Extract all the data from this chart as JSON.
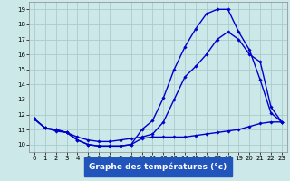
{
  "xlabel": "Graphe des températures (°c)",
  "background_color": "#cce8e8",
  "grid_color": "#aacccc",
  "line_color": "#0000cc",
  "xlim": [
    -0.5,
    23.5
  ],
  "ylim": [
    9.5,
    19.5
  ],
  "yticks": [
    10,
    11,
    12,
    13,
    14,
    15,
    16,
    17,
    18,
    19
  ],
  "xticks": [
    0,
    1,
    2,
    3,
    4,
    5,
    6,
    7,
    8,
    9,
    10,
    11,
    12,
    13,
    14,
    15,
    16,
    17,
    18,
    19,
    20,
    21,
    22,
    23
  ],
  "series": [
    {
      "x": [
        0,
        1,
        2,
        3,
        4,
        5,
        6,
        7,
        8,
        9,
        10,
        11,
        12,
        13,
        14,
        15,
        16,
        17,
        18,
        19,
        20,
        21,
        22,
        23
      ],
      "y": [
        11.7,
        11.1,
        11.0,
        10.8,
        10.3,
        10.0,
        9.9,
        9.9,
        9.9,
        10.0,
        11.0,
        11.6,
        13.1,
        15.0,
        16.5,
        17.7,
        18.7,
        19.0,
        19.0,
        17.5,
        16.3,
        14.3,
        12.1,
        11.5
      ]
    },
    {
      "x": [
        0,
        1,
        2,
        3,
        4,
        5,
        6,
        7,
        8,
        9,
        10,
        11,
        12,
        13,
        14,
        15,
        16,
        17,
        18,
        19,
        20,
        21,
        22,
        23
      ],
      "y": [
        11.7,
        11.1,
        11.0,
        10.8,
        10.5,
        10.3,
        10.2,
        10.2,
        10.3,
        10.4,
        10.5,
        10.7,
        11.5,
        13.0,
        14.5,
        15.2,
        16.0,
        17.0,
        17.5,
        17.0,
        16.0,
        15.5,
        12.5,
        11.5
      ]
    },
    {
      "x": [
        0,
        1,
        2,
        3,
        4,
        5,
        6,
        7,
        8,
        9,
        10,
        11,
        12,
        13,
        14,
        15,
        16,
        17,
        18,
        19,
        20,
        21,
        22,
        23
      ],
      "y": [
        11.7,
        11.1,
        10.9,
        10.8,
        10.3,
        10.0,
        9.9,
        9.9,
        9.9,
        10.0,
        10.4,
        10.5,
        10.5,
        10.5,
        10.5,
        10.6,
        10.7,
        10.8,
        10.9,
        11.0,
        11.2,
        11.4,
        11.5,
        11.5
      ]
    }
  ],
  "xlabel_color": "#0000aa",
  "xlabel_bg": "#2255bb",
  "tick_fontsize": 5.0,
  "xlabel_fontsize": 6.5,
  "linewidth": 1.0,
  "markersize": 1.8
}
